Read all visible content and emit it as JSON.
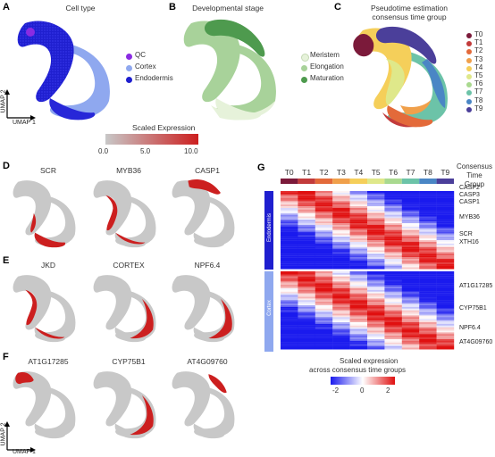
{
  "panel_labels": {
    "A": "A",
    "B": "B",
    "C": "C",
    "D": "D",
    "E": "E",
    "F": "F",
    "G": "G"
  },
  "panel_a": {
    "title": "Cell type",
    "legend": [
      {
        "label": "QC",
        "color": "#8a2be2"
      },
      {
        "label": "Cortex",
        "color": "#8fa8ef"
      },
      {
        "label": "Endodermis",
        "color": "#1f1fcf"
      }
    ]
  },
  "panel_b": {
    "title": "Developmental stage",
    "legend": [
      {
        "label": "Meristem",
        "color": "#e6f2da"
      },
      {
        "label": "Elongation",
        "color": "#a8d29a"
      },
      {
        "label": "Maturation",
        "color": "#4e9a4e"
      }
    ]
  },
  "panel_c": {
    "title_line1": "Pseudotime estimation",
    "title_line2": "consensus time group",
    "legend": [
      {
        "label": "T0",
        "color": "#7b1a3a"
      },
      {
        "label": "T1",
        "color": "#c23b3b"
      },
      {
        "label": "T2",
        "color": "#e36a3a"
      },
      {
        "label": "T3",
        "color": "#f0a04b"
      },
      {
        "label": "T4",
        "color": "#f5cf5a"
      },
      {
        "label": "T5",
        "color": "#dfe88a"
      },
      {
        "label": "T6",
        "color": "#a9d98f"
      },
      {
        "label": "T7",
        "color": "#6cc3a8"
      },
      {
        "label": "T8",
        "color": "#4a86c5"
      },
      {
        "label": "T9",
        "color": "#4b3f9a"
      }
    ]
  },
  "umap_axes": {
    "y": "UMAP 2",
    "x": "UMAP 1"
  },
  "scaled_expression": {
    "title": "Scaled Expression",
    "ticks": [
      "0.0",
      "5.0",
      "10.0"
    ],
    "color_low": "#c8c8c8",
    "color_high": "#cc1f1f"
  },
  "panel_d": {
    "genes": [
      "SCR",
      "MYB36",
      "CASP1"
    ]
  },
  "panel_e": {
    "genes": [
      "JKD",
      "CORTEX",
      "NPF6.4"
    ]
  },
  "panel_f": {
    "genes": [
      "AT1G17285",
      "CYP75B1",
      "AT4G09760"
    ]
  },
  "panel_g": {
    "header": [
      "Consensus",
      "Time",
      "Group"
    ],
    "time_groups": [
      "T0",
      "T1",
      "T2",
      "T3",
      "T4",
      "T5",
      "T6",
      "T7",
      "T8",
      "T9"
    ],
    "sections": [
      "Endodermis",
      "Cortex"
    ],
    "gene_labels": [
      "CASP2",
      "CASP3",
      "CASP1",
      "MYB36",
      "SCR",
      "XTH16",
      "AT1G17285",
      "CYP75B1",
      "NPF6.4",
      "AT4G09760"
    ],
    "colorbar_title_line1": "Scaled expression",
    "colorbar_title_line2": "across consensus time groups",
    "colorbar_ticks": [
      "-2",
      "0",
      "2"
    ],
    "color_low": "#1a1aee",
    "color_mid": "#ffffff",
    "color_high": "#e01010"
  }
}
